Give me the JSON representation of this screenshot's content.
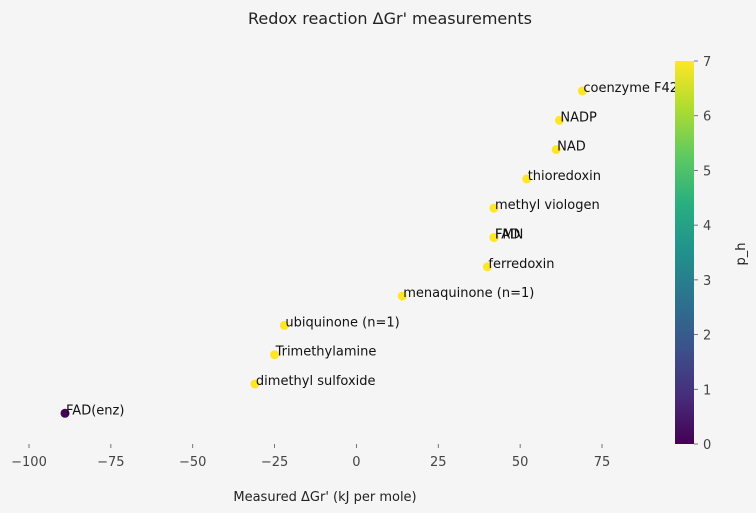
{
  "chart_data": {
    "type": "scatter",
    "title": "Redox reaction ΔGr' measurements",
    "xlabel": "Measured ΔGr' (kJ per mole)",
    "ylabel": "",
    "xlim": [
      -100,
      100
    ],
    "xticks": [
      -100,
      -75,
      -50,
      -25,
      0,
      25,
      50,
      75
    ],
    "y_axis_visible": false,
    "grid": false,
    "colorbar": {
      "label": "p_h",
      "colormap": "viridis",
      "range": [
        0,
        7
      ],
      "ticks": [
        0,
        1,
        2,
        3,
        4,
        5,
        6,
        7
      ]
    },
    "points": [
      {
        "label": "coenzyme F420",
        "x": 69,
        "y": 12,
        "p_h": 7
      },
      {
        "label": "NADP",
        "x": 62,
        "y": 11,
        "p_h": 7
      },
      {
        "label": "NAD",
        "x": 61,
        "y": 10,
        "p_h": 7
      },
      {
        "label": "thioredoxin",
        "x": 52,
        "y": 9,
        "p_h": 7
      },
      {
        "label": "methyl viologen",
        "x": 42,
        "y": 8,
        "p_h": 7
      },
      {
        "label": "FAD",
        "x": 42,
        "y": 7,
        "p_h": 7
      },
      {
        "label": "FMN",
        "x": 42,
        "y": 7,
        "p_h": 7
      },
      {
        "label": "ferredoxin",
        "x": 40,
        "y": 6,
        "p_h": 7
      },
      {
        "label": "menaquinone (n=1)",
        "x": 14,
        "y": 5,
        "p_h": 7
      },
      {
        "label": "ubiquinone (n=1)",
        "x": -22,
        "y": 4,
        "p_h": 7
      },
      {
        "label": "Trimethylamine",
        "x": -25,
        "y": 3,
        "p_h": 7
      },
      {
        "label": "dimethyl sulfoxide",
        "x": -31,
        "y": 2,
        "p_h": 7
      },
      {
        "label": "FAD(enz)",
        "x": -89,
        "y": 1,
        "p_h": 0
      }
    ]
  }
}
